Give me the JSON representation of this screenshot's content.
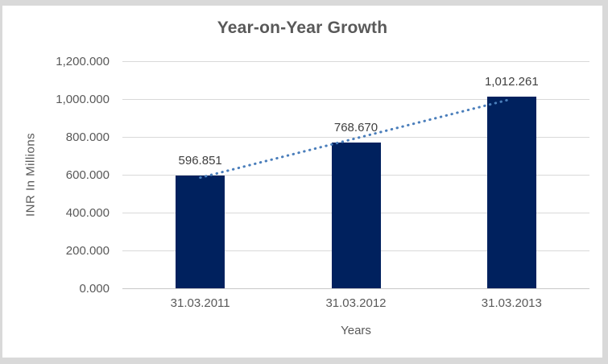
{
  "chart_data": {
    "type": "bar",
    "title": "Year-on-Year Growth",
    "categories": [
      "31.03.2011",
      "31.03.2012",
      "31.03.2013"
    ],
    "values": [
      596.851,
      768.67,
      1012.261
    ],
    "data_labels": [
      "596.851",
      "768.670",
      "1,012.261"
    ],
    "xlabel": "Years",
    "ylabel": "INR In Millions",
    "ylim": [
      0,
      1200
    ],
    "ytick_step": 200,
    "ytick_labels": [
      "0.000",
      "200.000",
      "400.000",
      "600.000",
      "800.000",
      "1,000.000",
      "1,200.000"
    ],
    "grid": true,
    "legend": false,
    "trendline": {
      "type": "linear",
      "style": "dotted"
    },
    "colors": {
      "bar": "#00215E",
      "trendline": "#4A7EBB",
      "gridline": "#D9D9D9",
      "axis_line": "#C9C9C9",
      "text": "#595959",
      "data_label": "#3F3F3F",
      "frame_background": "#D9D9D9",
      "chart_background": "#FFFFFF"
    }
  }
}
